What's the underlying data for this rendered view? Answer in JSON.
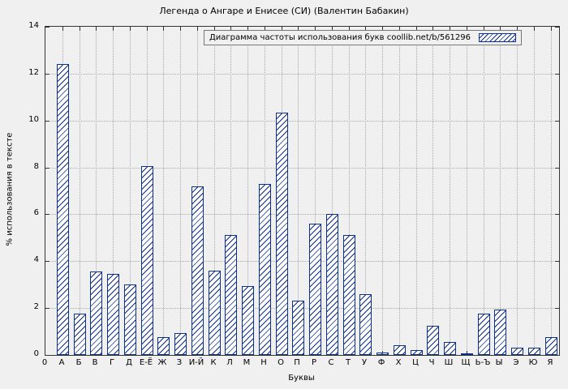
{
  "chart_data": {
    "type": "bar",
    "title": "Легенда о Ангаре и Енисее (СИ) (Валентин Бабакин)",
    "legend": "Диаграмма частоты использования букв coollib.net/b/561296",
    "legend_position": "top-right",
    "xlabel": "Буквы",
    "ylabel": "% использования в тексте",
    "ylim": [
      0,
      14
    ],
    "yticks": [
      0,
      2,
      4,
      6,
      8,
      10,
      12,
      14
    ],
    "origin_label": "0",
    "grid": true,
    "categories": [
      "А",
      "Б",
      "В",
      "Г",
      "Д",
      "Е-Ё",
      "Ж",
      "З",
      "И-Й",
      "К",
      "Л",
      "М",
      "Н",
      "О",
      "П",
      "Р",
      "С",
      "Т",
      "У",
      "Ф",
      "Х",
      "Ц",
      "Ч",
      "Ш",
      "Щ",
      "Ь-Ъ",
      "Ы",
      "Э",
      "Ю",
      "Я"
    ],
    "values": [
      12.4,
      1.75,
      3.55,
      3.45,
      3.0,
      8.05,
      0.75,
      0.95,
      7.2,
      3.6,
      5.1,
      2.95,
      7.3,
      10.35,
      2.3,
      5.6,
      6.0,
      5.1,
      2.6,
      0.1,
      0.4,
      0.2,
      1.25,
      0.55,
      0.05,
      1.75,
      1.95,
      0.3,
      0.3,
      0.75
    ],
    "colors": {
      "bar": "#0b2f8f",
      "bar_fill": "#ffffff",
      "background": "#f0f0f0",
      "grid": "#a8a8a8",
      "axis": "#333333"
    }
  }
}
